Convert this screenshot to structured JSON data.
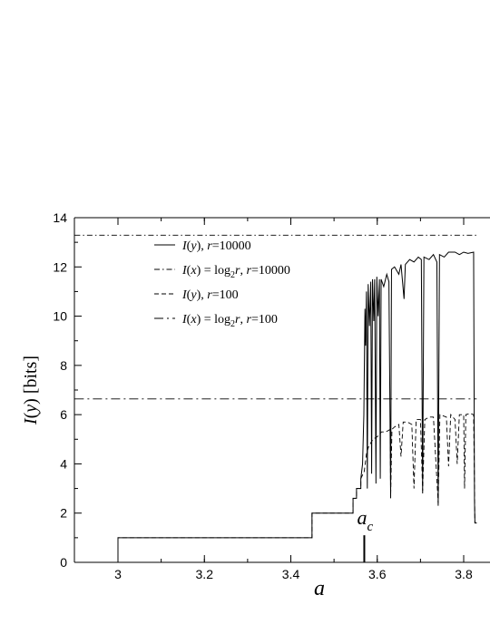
{
  "chart_data": {
    "type": "line",
    "xlabel": "a",
    "ylabel": "I(y) [bits]",
    "xlim": [
      2.9,
      3.83
    ],
    "ylim": [
      0,
      14
    ],
    "x_ticks": [
      "3",
      "3.2",
      "3.4",
      "3.6",
      "3.8"
    ],
    "x_tick_values": [
      3.0,
      3.2,
      3.4,
      3.6,
      3.8
    ],
    "y_ticks": [
      "0",
      "2",
      "4",
      "6",
      "8",
      "10",
      "12",
      "14"
    ],
    "y_tick_values": [
      0,
      2,
      4,
      6,
      8,
      10,
      12,
      14
    ],
    "grid": false,
    "legend_position": "top-left",
    "legend": [
      "I(y), r=10000",
      "I(x) = log2r, r=10000",
      "I(y), r=100",
      "I(x) = log2r, r=100"
    ],
    "annotation": {
      "text_main": "a",
      "text_sub": "c",
      "x": 3.57,
      "y_from": 0,
      "y_to": 1.1
    },
    "series": [
      {
        "name": "I(y), r=10000",
        "style": "solid",
        "points": [
          [
            3.0,
            0
          ],
          [
            3.0,
            1.0
          ],
          [
            3.449,
            1.0
          ],
          [
            3.449,
            2.0
          ],
          [
            3.544,
            2.0
          ],
          [
            3.544,
            2.6
          ],
          [
            3.552,
            2.6
          ],
          [
            3.552,
            3.0
          ],
          [
            3.562,
            3.0
          ],
          [
            3.562,
            3.4
          ],
          [
            3.566,
            4.0
          ],
          [
            3.569,
            6.0
          ],
          [
            3.5715,
            10.3
          ],
          [
            3.573,
            8.8
          ],
          [
            3.575,
            11.0
          ],
          [
            3.577,
            3.0
          ],
          [
            3.579,
            11.3
          ],
          [
            3.582,
            9.6
          ],
          [
            3.585,
            11.4
          ],
          [
            3.587,
            3.6
          ],
          [
            3.589,
            11.5
          ],
          [
            3.592,
            9.8
          ],
          [
            3.594,
            11.5
          ],
          [
            3.597,
            3.2
          ],
          [
            3.599,
            11.6
          ],
          [
            3.602,
            10.0
          ],
          [
            3.605,
            11.5
          ],
          [
            3.607,
            3.4
          ],
          [
            3.609,
            11.5
          ],
          [
            3.615,
            11.2
          ],
          [
            3.622,
            11.7
          ],
          [
            3.627,
            11.4
          ],
          [
            3.631,
            2.6
          ],
          [
            3.633,
            11.9
          ],
          [
            3.64,
            12.0
          ],
          [
            3.65,
            11.7
          ],
          [
            3.655,
            12.1
          ],
          [
            3.662,
            10.7
          ],
          [
            3.665,
            12.1
          ],
          [
            3.675,
            12.3
          ],
          [
            3.685,
            12.2
          ],
          [
            3.695,
            12.4
          ],
          [
            3.702,
            12.3
          ],
          [
            3.705,
            2.8
          ],
          [
            3.708,
            12.4
          ],
          [
            3.72,
            12.3
          ],
          [
            3.73,
            12.5
          ],
          [
            3.738,
            12.2
          ],
          [
            3.741,
            2.3
          ],
          [
            3.744,
            12.5
          ],
          [
            3.755,
            12.4
          ],
          [
            3.765,
            12.6
          ],
          [
            3.78,
            12.6
          ],
          [
            3.79,
            12.5
          ],
          [
            3.8,
            12.6
          ],
          [
            3.81,
            12.55
          ],
          [
            3.823,
            12.6
          ],
          [
            3.825,
            2.5
          ],
          [
            3.826,
            1.6
          ],
          [
            3.83,
            1.6
          ]
        ]
      },
      {
        "name": "I(x) = log2r, r=10000",
        "style": "dash-dot",
        "points": [
          [
            2.9,
            13.29
          ],
          [
            3.83,
            13.29
          ]
        ]
      },
      {
        "name": "I(y), r=100",
        "style": "dashed",
        "points": [
          [
            3.0,
            0
          ],
          [
            3.0,
            1.0
          ],
          [
            3.449,
            1.0
          ],
          [
            3.449,
            2.0
          ],
          [
            3.544,
            2.0
          ],
          [
            3.544,
            2.6
          ],
          [
            3.552,
            2.6
          ],
          [
            3.552,
            3.0
          ],
          [
            3.562,
            3.0
          ],
          [
            3.562,
            3.4
          ],
          [
            3.57,
            3.7
          ],
          [
            3.575,
            4.4
          ],
          [
            3.58,
            4.7
          ],
          [
            3.59,
            5.0
          ],
          [
            3.6,
            5.1
          ],
          [
            3.61,
            5.3
          ],
          [
            3.62,
            5.3
          ],
          [
            3.63,
            5.4
          ],
          [
            3.631,
            2.7
          ],
          [
            3.634,
            5.4
          ],
          [
            3.64,
            5.5
          ],
          [
            3.65,
            5.6
          ],
          [
            3.655,
            4.3
          ],
          [
            3.66,
            5.7
          ],
          [
            3.67,
            5.7
          ],
          [
            3.68,
            5.6
          ],
          [
            3.685,
            3.0
          ],
          [
            3.69,
            5.8
          ],
          [
            3.7,
            5.8
          ],
          [
            3.705,
            2.9
          ],
          [
            3.71,
            5.8
          ],
          [
            3.72,
            5.9
          ],
          [
            3.73,
            5.9
          ],
          [
            3.741,
            2.4
          ],
          [
            3.745,
            6.0
          ],
          [
            3.76,
            5.9
          ],
          [
            3.765,
            3.9
          ],
          [
            3.77,
            6.0
          ],
          [
            3.78,
            5.8
          ],
          [
            3.785,
            4.0
          ],
          [
            3.79,
            6.0
          ],
          [
            3.8,
            6.0
          ],
          [
            3.802,
            3.0
          ],
          [
            3.805,
            6.0
          ],
          [
            3.815,
            6.05
          ],
          [
            3.823,
            6.0
          ],
          [
            3.826,
            1.6
          ],
          [
            3.83,
            1.6
          ]
        ]
      },
      {
        "name": "I(x) = log2r, r=100",
        "style": "dash-dot-long",
        "points": [
          [
            2.9,
            6.64
          ],
          [
            3.83,
            6.64
          ]
        ]
      }
    ]
  }
}
